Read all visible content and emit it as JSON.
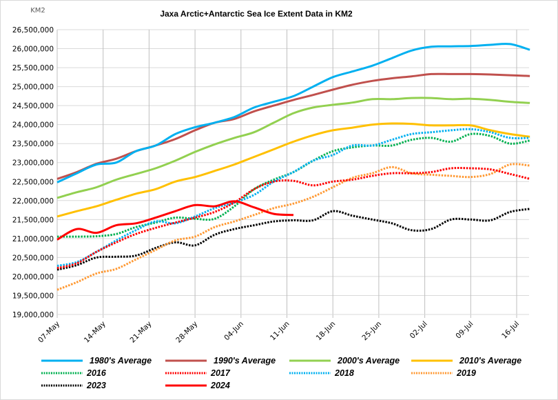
{
  "chart_data": {
    "type": "line",
    "title": "Jaxa Arctic+Antarctic Sea Ice Extent Data in KM2",
    "ylabel": "KM2",
    "xlabel": "",
    "ylim": [
      19000000,
      26500000
    ],
    "ytick_step": 500000,
    "yticks": [
      "19,000,000",
      "19,500,000",
      "20,000,000",
      "20,500,000",
      "21,000,000",
      "21,500,000",
      "22,000,000",
      "22,500,000",
      "23,000,000",
      "23,500,000",
      "24,000,000",
      "24,500,000",
      "25,000,000",
      "25,500,000",
      "26,000,000",
      "26,500,000"
    ],
    "x_unit": "day index from 07-May",
    "xlim": [
      0,
      72
    ],
    "xticks": [
      {
        "day": 0,
        "label": "07-May"
      },
      {
        "day": 7,
        "label": "14-May"
      },
      {
        "day": 14,
        "label": "21-May"
      },
      {
        "day": 21,
        "label": "28-May"
      },
      {
        "day": 28,
        "label": "04-Jun"
      },
      {
        "day": 35,
        "label": "11-Jun"
      },
      {
        "day": 42,
        "label": "18-Jun"
      },
      {
        "day": 49,
        "label": "25-Jun"
      },
      {
        "day": 56,
        "label": "02-Jul"
      },
      {
        "day": 63,
        "label": "09-Jul"
      },
      {
        "day": 70,
        "label": "16-Jul"
      }
    ],
    "grid": true,
    "legend": "bottom",
    "x": [
      0,
      3,
      6,
      9,
      12,
      15,
      18,
      21,
      24,
      27,
      30,
      33,
      36,
      39,
      42,
      45,
      48,
      51,
      54,
      57,
      60,
      63,
      66,
      69,
      72
    ],
    "series": [
      {
        "name": "1980's Average",
        "color": "#00b0f0",
        "style": "solid",
        "values": [
          22.48,
          22.72,
          22.95,
          23.0,
          23.3,
          23.45,
          23.75,
          23.93,
          24.05,
          24.2,
          24.45,
          24.6,
          24.75,
          25.0,
          25.25,
          25.4,
          25.55,
          25.75,
          25.95,
          26.05,
          26.06,
          26.07,
          26.1,
          26.12,
          25.97
        ]
      },
      {
        "name": "1990's Average",
        "color": "#c0504d",
        "style": "solid",
        "values": [
          22.57,
          22.75,
          22.97,
          23.1,
          23.3,
          23.45,
          23.62,
          23.85,
          24.05,
          24.15,
          24.35,
          24.5,
          24.65,
          24.78,
          24.92,
          25.05,
          25.15,
          25.22,
          25.27,
          25.33,
          25.33,
          25.33,
          25.32,
          25.3,
          25.28
        ]
      },
      {
        "name": "2000's Average",
        "color": "#92d050",
        "style": "solid",
        "values": [
          22.07,
          22.22,
          22.35,
          22.55,
          22.7,
          22.85,
          23.05,
          23.28,
          23.48,
          23.65,
          23.8,
          24.05,
          24.3,
          24.45,
          24.52,
          24.58,
          24.67,
          24.67,
          24.7,
          24.7,
          24.67,
          24.68,
          24.65,
          24.6,
          24.57
        ]
      },
      {
        "name": "2010's Average",
        "color": "#ffc000",
        "style": "solid",
        "values": [
          21.58,
          21.72,
          21.85,
          22.02,
          22.18,
          22.3,
          22.5,
          22.62,
          22.78,
          22.95,
          23.15,
          23.35,
          23.55,
          23.72,
          23.85,
          23.92,
          24.0,
          24.03,
          24.02,
          23.98,
          23.98,
          23.98,
          23.85,
          23.75,
          23.68
        ]
      },
      {
        "name": "2016",
        "color": "#00b050",
        "style": "dotted",
        "values": [
          21.05,
          21.05,
          21.06,
          21.12,
          21.3,
          21.42,
          21.55,
          21.52,
          21.52,
          21.85,
          22.3,
          22.55,
          22.75,
          23.05,
          23.3,
          23.4,
          23.45,
          23.45,
          23.6,
          23.65,
          23.55,
          23.75,
          23.7,
          23.5,
          23.58
        ]
      },
      {
        "name": "2017",
        "color": "#ff0000",
        "style": "dotted",
        "values": [
          20.22,
          20.35,
          20.65,
          20.9,
          21.12,
          21.28,
          21.42,
          21.55,
          21.7,
          21.95,
          22.3,
          22.5,
          22.52,
          22.4,
          22.5,
          22.55,
          22.65,
          22.72,
          22.72,
          22.75,
          22.85,
          22.85,
          22.82,
          22.7,
          22.57
        ]
      },
      {
        "name": "2018",
        "color": "#00b0f0",
        "style": "dotted",
        "values": [
          20.28,
          20.38,
          20.65,
          20.95,
          21.22,
          21.45,
          21.4,
          21.58,
          21.8,
          21.95,
          22.15,
          22.5,
          22.75,
          23.05,
          23.2,
          23.45,
          23.45,
          23.6,
          23.75,
          23.8,
          23.85,
          23.88,
          23.8,
          23.65,
          23.65
        ]
      },
      {
        "name": "2019",
        "color": "#ff9933",
        "style": "dotted",
        "values": [
          19.65,
          19.85,
          20.08,
          20.2,
          20.45,
          20.7,
          20.95,
          21.05,
          21.3,
          21.45,
          21.62,
          21.8,
          21.92,
          22.1,
          22.35,
          22.6,
          22.72,
          22.88,
          22.72,
          22.68,
          22.65,
          22.62,
          22.7,
          22.95,
          22.92
        ]
      },
      {
        "name": "2023",
        "color": "#000000",
        "style": "dotted",
        "values": [
          20.18,
          20.3,
          20.5,
          20.52,
          20.55,
          20.75,
          20.9,
          20.82,
          21.1,
          21.25,
          21.35,
          21.45,
          21.48,
          21.48,
          21.72,
          21.6,
          21.5,
          21.4,
          21.22,
          21.25,
          21.5,
          21.5,
          21.48,
          21.7,
          21.78
        ]
      },
      {
        "name": "2024",
        "color": "#ff0000",
        "style": "solid",
        "values": [
          20.97,
          21.25,
          21.15,
          21.35,
          21.4,
          21.55,
          21.72,
          21.88,
          21.85,
          21.98,
          21.82,
          21.65,
          21.62,
          null,
          null,
          null,
          null,
          null,
          null,
          null,
          null,
          null,
          null,
          null,
          null
        ]
      }
    ]
  }
}
